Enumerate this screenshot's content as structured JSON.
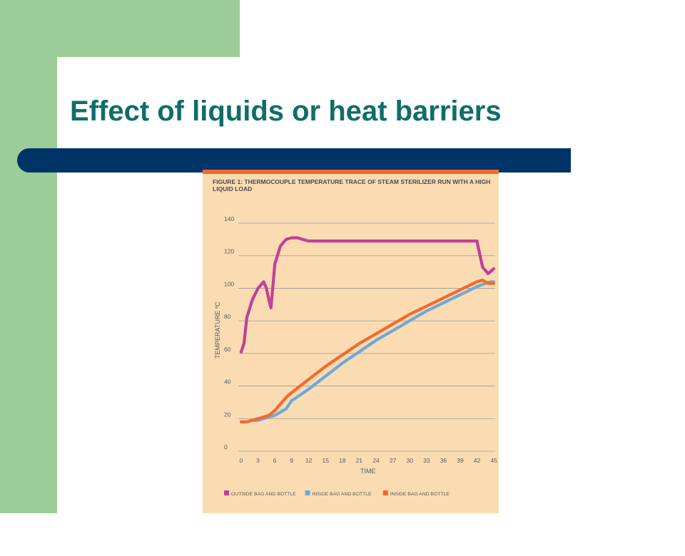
{
  "slide": {
    "title": "Effect of liquids or heat barriers"
  },
  "colors": {
    "green": "#9ccc98",
    "title_teal": "#0f6e6a",
    "navy_bar": "#003366",
    "figure_bg": "#fbdcb2",
    "figure_topline": "#f26a2e"
  },
  "chart_data": {
    "type": "line",
    "title": "FIGURE 1: THERMOCOUPLE TEMPERATURE TRACE OF STEAM STERILIZER RUN WITH A HIGH LIQUID LOAD",
    "xlabel": "TIME",
    "ylabel": "TEMPERATURE ºC",
    "xlim": [
      0,
      45
    ],
    "ylim": [
      0,
      140
    ],
    "xticks": [
      0,
      3,
      6,
      9,
      12,
      15,
      18,
      21,
      24,
      27,
      30,
      33,
      36,
      39,
      42,
      45
    ],
    "yticks": [
      0,
      20,
      40,
      60,
      80,
      100,
      120,
      140
    ],
    "grid": true,
    "legend_position": "bottom",
    "series": [
      {
        "name": "OUTSIDE BAG AND BOTTLE",
        "color": "#c0409a",
        "x": [
          0,
          0.5,
          1,
          2,
          3,
          4,
          4.5,
          5,
          5.3,
          6,
          7,
          8,
          9,
          10,
          11,
          12,
          15,
          20,
          25,
          30,
          35,
          40,
          42,
          42.5,
          43,
          44,
          45
        ],
        "y": [
          61,
          66,
          82,
          93,
          100,
          104,
          100,
          92,
          88,
          115,
          126,
          130,
          131,
          131,
          130,
          129,
          129,
          129,
          129,
          129,
          129,
          129,
          129,
          121,
          113,
          109,
          112
        ]
      },
      {
        "name": "INSIDE BAG AND BOTTLE",
        "color": "#6ea8dc",
        "x": [
          0,
          1,
          2,
          3,
          4,
          5,
          6,
          7,
          8,
          9,
          12,
          15,
          18,
          21,
          24,
          27,
          30,
          33,
          36,
          39,
          42,
          43.5,
          44.5,
          45
        ],
        "y": [
          18,
          18,
          19,
          19,
          20,
          21,
          22,
          24,
          26,
          31,
          38,
          46,
          54,
          61,
          68,
          74,
          80,
          86,
          91,
          96,
          101,
          103,
          104,
          104
        ]
      },
      {
        "name": "INSIDE BAG AND BOTTLE",
        "color": "#f26a2e",
        "x": [
          0,
          1,
          2,
          3,
          4,
          5,
          6,
          7,
          8,
          9,
          12,
          15,
          18,
          21,
          24,
          27,
          30,
          33,
          36,
          39,
          42,
          43,
          44,
          45
        ],
        "y": [
          18,
          18,
          19,
          20,
          21,
          22,
          25,
          29,
          33,
          36,
          44,
          52,
          59,
          66,
          72,
          78,
          84,
          89,
          94,
          99,
          104,
          105,
          103,
          103
        ]
      }
    ]
  }
}
